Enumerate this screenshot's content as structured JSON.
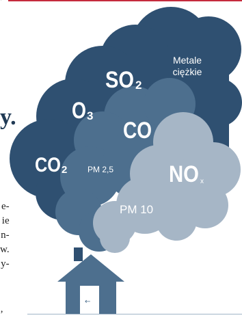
{
  "article_fragments": {
    "top": "’",
    "dot": "y.",
    "lines": [
      "e-",
      "ie",
      "n-",
      "w.",
      "y-"
    ],
    "bottom": "’"
  },
  "diagram": {
    "labels": {
      "metale_line1": "Metale",
      "metale_line2": "ciężkie",
      "so2_main": "SO",
      "so2_sub": "2",
      "o3_main": "O",
      "o3_sub": "3",
      "co": "CO",
      "co2_main": "CO",
      "co2_sub": "2",
      "pm25": "PM 2,5",
      "nox_main": "NO",
      "nox_sub": "x",
      "pm10": "PM 10"
    },
    "door_arrow": "←",
    "colors": {
      "dark_cloud": "#2f5071",
      "mid_cloud": "#4d6f8e",
      "light_cloud": "#a6b6c6",
      "house": "#4d6f8e",
      "chimney": "#2f5071",
      "door": "#ffffff",
      "accent_rule": "#c52b3d"
    }
  }
}
